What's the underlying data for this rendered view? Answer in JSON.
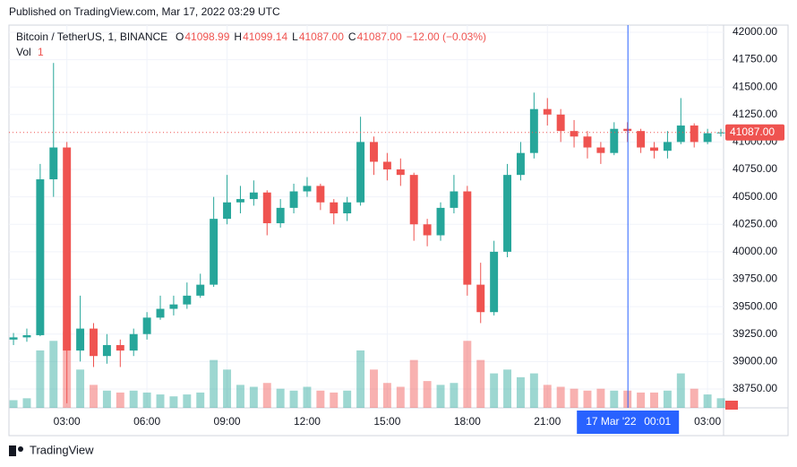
{
  "published": "Published on TradingView.com, Mar 17, 2022 03:29 UTC",
  "footer": "TradingView",
  "chart_data": {
    "type": "candlestick",
    "symbol": "Bitcoin / TetherUS, 1, BINANCE",
    "ohlc_legend": [
      {
        "key": "O",
        "value": "41098.99"
      },
      {
        "key": "H",
        "value": "41099.14"
      },
      {
        "key": "L",
        "value": "41087.00"
      },
      {
        "key": "C",
        "value": "41087.00"
      }
    ],
    "change": "−12.00 (−0.03%)",
    "volume_name": "Vol",
    "volume_last": "1",
    "up_color": "#26a69a",
    "down_color": "#ef5350",
    "x": [
      1.0,
      1.5,
      2.0,
      2.5,
      3.0,
      3.5,
      4.0,
      4.5,
      5.0,
      5.5,
      6.0,
      6.5,
      7.0,
      7.5,
      8.0,
      8.5,
      9.0,
      9.5,
      10.0,
      10.5,
      11.0,
      11.5,
      12.0,
      12.5,
      13.0,
      13.5,
      14.0,
      14.5,
      15.0,
      15.5,
      16.0,
      16.5,
      17.0,
      17.5,
      18.0,
      18.5,
      19.0,
      19.5,
      20.0,
      20.5,
      21.0,
      21.5,
      22.0,
      22.5,
      23.0,
      23.5,
      24.0,
      24.5,
      25.0,
      25.5,
      26.0,
      26.5,
      27.0,
      27.5
    ],
    "open": [
      39200,
      39220,
      39240,
      40660,
      40950,
      39100,
      39300,
      39050,
      39150,
      39100,
      39250,
      39400,
      39480,
      39520,
      39600,
      39700,
      40300,
      40450,
      40480,
      40540,
      40260,
      40400,
      40550,
      40600,
      40450,
      40350,
      40450,
      41000,
      40820,
      40750,
      40700,
      40250,
      40150,
      40400,
      40550,
      39700,
      39450,
      40000,
      40700,
      40900,
      41300,
      41250,
      41100,
      41050,
      40950,
      40900,
      41120,
      41100,
      40950,
      40920,
      41000,
      41150,
      41000,
      41080
    ],
    "high": [
      39260,
      39300,
      40800,
      41720,
      41000,
      39600,
      39350,
      39250,
      39200,
      39300,
      39450,
      39600,
      39600,
      39720,
      39800,
      40500,
      40700,
      40600,
      40650,
      40560,
      40480,
      40620,
      40680,
      40620,
      40480,
      40500,
      41230,
      41050,
      40900,
      40850,
      40720,
      40300,
      40450,
      40700,
      40600,
      39900,
      40100,
      40800,
      41000,
      41450,
      41400,
      41300,
      41200,
      41100,
      41000,
      41180,
      41180,
      41120,
      41000,
      41100,
      41400,
      41170,
      41120,
      41120
    ],
    "low": [
      39150,
      39180,
      39230,
      40500,
      38620,
      39000,
      38950,
      38980,
      38950,
      39050,
      39200,
      39380,
      39420,
      39480,
      39580,
      39680,
      40250,
      40350,
      40420,
      40150,
      40220,
      40350,
      40500,
      40380,
      40250,
      40280,
      40420,
      40700,
      40650,
      40600,
      40100,
      40050,
      40100,
      40350,
      39600,
      39350,
      39420,
      39950,
      40650,
      40850,
      41150,
      41000,
      40950,
      40850,
      40800,
      40880,
      41000,
      40900,
      40850,
      40850,
      40980,
      40950,
      40980,
      41050
    ],
    "close": [
      39220,
      39240,
      40660,
      40950,
      39100,
      39300,
      39050,
      39150,
      39100,
      39250,
      39400,
      39480,
      39520,
      39600,
      39700,
      40300,
      40450,
      40480,
      40540,
      40260,
      40400,
      40550,
      40600,
      40450,
      40350,
      40450,
      41000,
      40820,
      40750,
      40700,
      40250,
      40150,
      40400,
      40550,
      39700,
      39450,
      40000,
      40700,
      40900,
      41300,
      41250,
      41100,
      41050,
      40950,
      40900,
      41120,
      41100,
      40950,
      40920,
      41000,
      41150,
      41000,
      41080,
      41087
    ],
    "volume": [
      40,
      50,
      300,
      350,
      400,
      200,
      120,
      90,
      80,
      90,
      80,
      70,
      60,
      70,
      80,
      250,
      200,
      120,
      110,
      130,
      100,
      90,
      110,
      90,
      80,
      90,
      300,
      200,
      130,
      110,
      250,
      140,
      120,
      130,
      350,
      250,
      180,
      200,
      160,
      180,
      120,
      110,
      100,
      90,
      100,
      90,
      90,
      80,
      80,
      90,
      180,
      100,
      70,
      50
    ],
    "volume_lim": [
      0,
      2000
    ],
    "last_price": {
      "value": 41087,
      "label": "41087.00"
    },
    "xlim": [
      0.83,
      27.6
    ],
    "ylim": [
      38578,
      42065
    ],
    "xticks": [
      {
        "value": 3,
        "label": "03:00"
      },
      {
        "value": 6,
        "label": "06:00"
      },
      {
        "value": 9,
        "label": "09:00"
      },
      {
        "value": 12,
        "label": "12:00"
      },
      {
        "value": 15,
        "label": "15:00"
      },
      {
        "value": 18,
        "label": "18:00"
      },
      {
        "value": 21,
        "label": "21:00"
      },
      {
        "value": 27,
        "label": "03:00"
      }
    ],
    "yticks": [
      {
        "value": 38750,
        "label": "38750.00"
      },
      {
        "value": 39000,
        "label": "39000.00"
      },
      {
        "value": 39250,
        "label": "39250.00"
      },
      {
        "value": 39500,
        "label": "39500.00"
      },
      {
        "value": 39750,
        "label": "39750.00"
      },
      {
        "value": 40000,
        "label": "40000.00"
      },
      {
        "value": 40250,
        "label": "40250.00"
      },
      {
        "value": 40500,
        "label": "40500.00"
      },
      {
        "value": 40750,
        "label": "40750.00"
      },
      {
        "value": 41000,
        "label": "41000.00"
      },
      {
        "value": 41250,
        "label": "41250.00"
      },
      {
        "value": 41500,
        "label": "41500.00"
      },
      {
        "value": 41750,
        "label": "41750.00"
      },
      {
        "value": 42000,
        "label": "42000.00"
      }
    ],
    "crosshair": {
      "x": 24.017,
      "date": "17 Mar '22",
      "time": "00:01"
    },
    "grid": true
  }
}
